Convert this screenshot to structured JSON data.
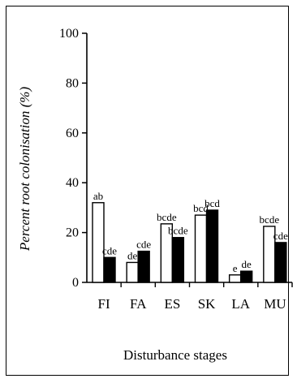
{
  "chart_data": {
    "type": "bar",
    "xlabel": "Disturbance stages",
    "ylabel": "Percent root colonisation (%)",
    "ylim": [
      0,
      100
    ],
    "yticks": [
      0,
      20,
      40,
      60,
      80,
      100
    ],
    "grid": false,
    "categories": [
      "FI",
      "FA",
      "ES",
      "SK",
      "LA",
      "MU"
    ],
    "series": [
      {
        "fill": "#ffffff",
        "values": [
          32,
          8,
          23.5,
          27,
          3,
          22.5
        ],
        "labels": [
          "ab",
          "de",
          "bcde",
          "bcd",
          "e",
          "bcde"
        ]
      },
      {
        "fill": "#000000",
        "values": [
          10,
          12.5,
          18,
          29,
          4.5,
          16
        ],
        "labels": [
          "cde",
          "cde",
          "bcde",
          "bcd",
          "de",
          "cde"
        ]
      }
    ]
  }
}
